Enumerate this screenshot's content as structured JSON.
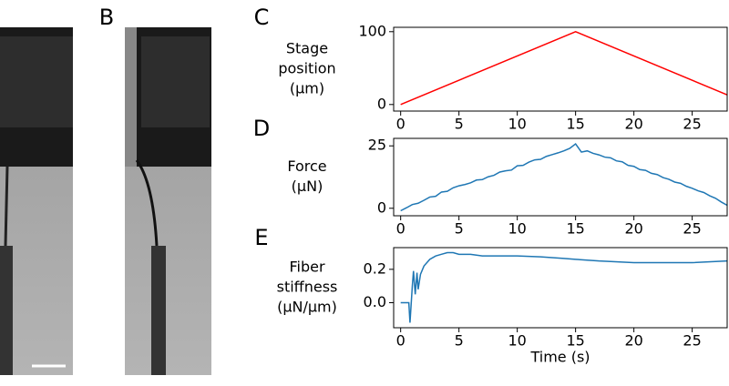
{
  "image_panel_label": "B",
  "chart_data": [
    {
      "type": "line",
      "panel": "C",
      "ylabel": [
        "Stage",
        "position",
        "(µm)"
      ],
      "xlim": [
        -0.6,
        28
      ],
      "xticks": [
        0,
        5,
        10,
        15,
        20,
        25
      ],
      "ylim": [
        -9,
        106
      ],
      "yticks": [
        0,
        100
      ],
      "series": [
        {
          "color": "#ff0000",
          "x": [
            0,
            15,
            28
          ],
          "values": [
            0,
            100,
            13.3
          ]
        }
      ]
    },
    {
      "type": "line",
      "panel": "D",
      "ylabel": [
        "Force",
        "(µN)"
      ],
      "xlim": [
        -0.6,
        28
      ],
      "xticks": [
        0,
        5,
        10,
        15,
        20,
        25
      ],
      "ylim": [
        -3,
        28
      ],
      "yticks": [
        0,
        25
      ],
      "series": [
        {
          "color": "#1f77b4",
          "x": [
            0,
            0.5,
            1,
            1.5,
            2,
            2.5,
            3,
            3.5,
            4,
            4.5,
            5,
            5.5,
            6,
            6.5,
            7,
            7.5,
            8,
            8.5,
            9,
            9.5,
            10,
            10.5,
            11,
            11.5,
            12,
            12.5,
            13,
            13.5,
            14,
            14.5,
            15,
            15.5,
            16,
            16.5,
            17,
            17.5,
            18,
            18.5,
            19,
            19.5,
            20,
            20.5,
            21,
            21.5,
            22,
            22.5,
            23,
            23.5,
            24,
            24.5,
            25,
            25.5,
            26,
            26.5,
            27,
            27.5,
            28
          ],
          "values": [
            -1,
            0.2,
            1.5,
            2,
            3.2,
            4.5,
            4.8,
            6.5,
            6.8,
            8.2,
            9,
            9.5,
            10.2,
            11.3,
            11.5,
            12.6,
            13.2,
            14.5,
            15,
            15.3,
            17,
            17.2,
            18.5,
            19.4,
            19.6,
            20.8,
            21.5,
            22.2,
            23,
            24,
            25.8,
            22.5,
            23,
            22,
            21.4,
            20.5,
            20.2,
            19,
            18.6,
            17.2,
            16.8,
            15.5,
            15.2,
            14,
            13.5,
            12.3,
            11.6,
            10.5,
            10,
            8.8,
            8,
            7,
            6.3,
            5,
            4,
            2.5,
            1.2
          ]
        }
      ]
    },
    {
      "type": "line",
      "panel": "E",
      "ylabel": [
        "Fiber",
        "stiffness",
        "(µN/µm)"
      ],
      "xlabel": "Time (s)",
      "xlim": [
        -0.6,
        28
      ],
      "xticks": [
        0,
        5,
        10,
        15,
        20,
        25
      ],
      "ylim": [
        -0.15,
        0.33
      ],
      "yticks": [
        {
          "value": 0,
          "label": "0.0"
        },
        {
          "value": 0.2,
          "label": "0.2"
        }
      ],
      "series": [
        {
          "color": "#1f77b4",
          "x": [
            0,
            0.5,
            0.7,
            0.8,
            1.0,
            1.1,
            1.25,
            1.4,
            1.5,
            1.7,
            2,
            2.5,
            3,
            3.5,
            4,
            4.5,
            5,
            6,
            7,
            8,
            10,
            12,
            14,
            15,
            17,
            20,
            22,
            25,
            28
          ],
          "values": [
            0,
            0,
            0,
            -0.12,
            0.1,
            0.19,
            0.05,
            0.18,
            0.08,
            0.17,
            0.22,
            0.26,
            0.28,
            0.29,
            0.3,
            0.3,
            0.29,
            0.29,
            0.28,
            0.28,
            0.28,
            0.275,
            0.265,
            0.26,
            0.25,
            0.24,
            0.24,
            0.24,
            0.25
          ]
        }
      ]
    }
  ]
}
